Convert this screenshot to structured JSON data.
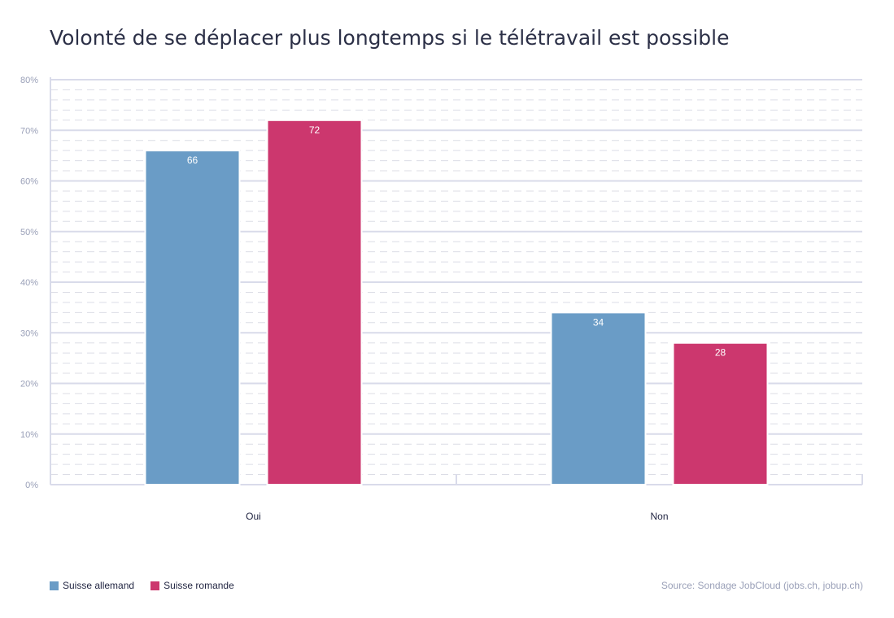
{
  "title": "Volonté de se déplacer plus longtemps si le télétravail est possible",
  "source": "Source: Sondage JobCloud (jobs.ch, jobup.ch)",
  "chart_data": {
    "type": "bar",
    "categories": [
      "Oui",
      "Non"
    ],
    "series": [
      {
        "name": "Suisse allemand",
        "values": [
          66,
          34
        ],
        "color": "#6a9cc6"
      },
      {
        "name": "Suisse romande",
        "values": [
          72,
          28
        ],
        "color": "#cc376e"
      }
    ],
    "y_ticks": [
      "0%",
      "10%",
      "20%",
      "30%",
      "40%",
      "50%",
      "60%",
      "70%",
      "80%"
    ],
    "ylim": [
      0,
      80
    ],
    "grid": true,
    "legend_position": "bottom-left"
  }
}
